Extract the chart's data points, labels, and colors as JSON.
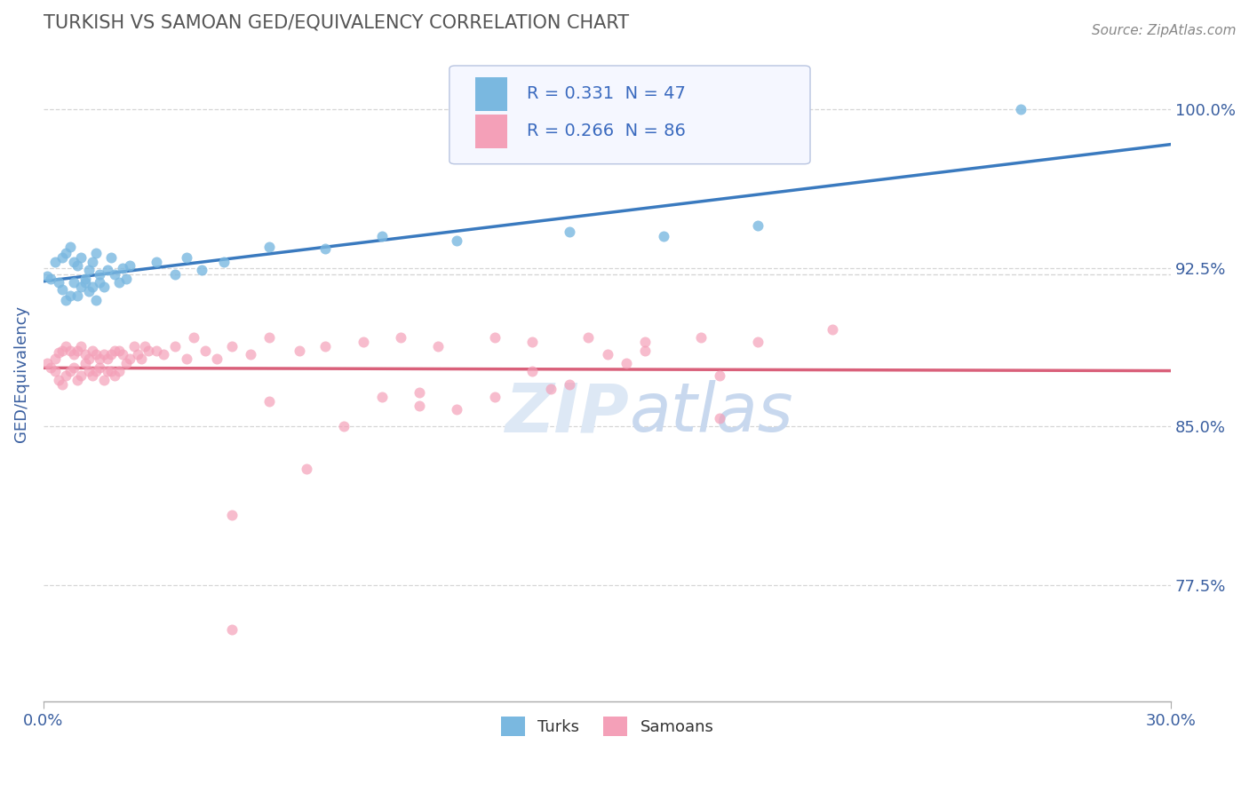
{
  "title": "TURKISH VS SAMOAN GED/EQUIVALENCY CORRELATION CHART",
  "source": "Source: ZipAtlas.com",
  "ylabel": "GED/Equivalency",
  "xlim": [
    0.0,
    0.3
  ],
  "ylim": [
    0.72,
    1.03
  ],
  "yticks": [
    0.775,
    0.85,
    0.925,
    1.0
  ],
  "ytick_labels": [
    "77.5%",
    "85.0%",
    "92.5%",
    "100.0%"
  ],
  "xticks": [
    0.0,
    0.3
  ],
  "xtick_labels": [
    "0.0%",
    "30.0%"
  ],
  "legend_r1_prefix": "R = ",
  "legend_r1_val": "0.331",
  "legend_r1_n": "  N = ",
  "legend_r1_nval": "47",
  "legend_r2_prefix": "R = ",
  "legend_r2_val": "0.266",
  "legend_r2_n": "  N = ",
  "legend_r2_nval": "86",
  "turks_color": "#7ab8e0",
  "samoans_color": "#f4a0b8",
  "turks_line_color": "#3a7abf",
  "samoans_line_color": "#d9607a",
  "grid_color": "#cccccc",
  "title_color": "#555555",
  "axis_label_color": "#3a5fa0",
  "blue_text_color": "#3a6abf",
  "watermark_color": "#dde8f5",
  "background_color": "#ffffff",
  "turks_scatter_x": [
    0.001,
    0.002,
    0.003,
    0.004,
    0.005,
    0.005,
    0.006,
    0.006,
    0.007,
    0.007,
    0.008,
    0.008,
    0.009,
    0.009,
    0.01,
    0.01,
    0.011,
    0.011,
    0.012,
    0.012,
    0.013,
    0.013,
    0.014,
    0.014,
    0.015,
    0.015,
    0.016,
    0.017,
    0.018,
    0.019,
    0.02,
    0.021,
    0.022,
    0.023,
    0.03,
    0.035,
    0.038,
    0.042,
    0.048,
    0.06,
    0.075,
    0.09,
    0.11,
    0.14,
    0.165,
    0.19,
    0.26
  ],
  "turks_scatter_y": [
    0.921,
    0.92,
    0.928,
    0.918,
    0.93,
    0.915,
    0.932,
    0.91,
    0.935,
    0.912,
    0.928,
    0.918,
    0.926,
    0.912,
    0.93,
    0.916,
    0.92,
    0.918,
    0.924,
    0.914,
    0.928,
    0.916,
    0.932,
    0.91,
    0.922,
    0.918,
    0.916,
    0.924,
    0.93,
    0.922,
    0.918,
    0.925,
    0.92,
    0.926,
    0.928,
    0.922,
    0.93,
    0.924,
    0.928,
    0.935,
    0.934,
    0.94,
    0.938,
    0.942,
    0.94,
    0.945,
    1.0
  ],
  "samoans_scatter_x": [
    0.001,
    0.002,
    0.003,
    0.003,
    0.004,
    0.004,
    0.005,
    0.005,
    0.006,
    0.006,
    0.007,
    0.007,
    0.008,
    0.008,
    0.009,
    0.009,
    0.01,
    0.01,
    0.011,
    0.011,
    0.012,
    0.012,
    0.013,
    0.013,
    0.014,
    0.014,
    0.015,
    0.015,
    0.016,
    0.016,
    0.017,
    0.017,
    0.018,
    0.018,
    0.019,
    0.019,
    0.02,
    0.02,
    0.021,
    0.022,
    0.023,
    0.024,
    0.025,
    0.026,
    0.027,
    0.028,
    0.03,
    0.032,
    0.035,
    0.038,
    0.04,
    0.043,
    0.046,
    0.05,
    0.055,
    0.06,
    0.068,
    0.075,
    0.085,
    0.095,
    0.105,
    0.12,
    0.13,
    0.145,
    0.16,
    0.175,
    0.19,
    0.21,
    0.06,
    0.13,
    0.155,
    0.18,
    0.135,
    0.05,
    0.16,
    0.09,
    0.1,
    0.05,
    0.18,
    0.14,
    0.11,
    0.07,
    0.08,
    0.1,
    0.12,
    0.15
  ],
  "samoans_scatter_y": [
    0.88,
    0.878,
    0.882,
    0.876,
    0.885,
    0.872,
    0.886,
    0.87,
    0.888,
    0.874,
    0.886,
    0.876,
    0.884,
    0.878,
    0.886,
    0.872,
    0.888,
    0.874,
    0.884,
    0.88,
    0.882,
    0.876,
    0.886,
    0.874,
    0.884,
    0.876,
    0.882,
    0.878,
    0.884,
    0.872,
    0.882,
    0.876,
    0.884,
    0.876,
    0.886,
    0.874,
    0.886,
    0.876,
    0.884,
    0.88,
    0.882,
    0.888,
    0.884,
    0.882,
    0.888,
    0.886,
    0.886,
    0.884,
    0.888,
    0.882,
    0.892,
    0.886,
    0.882,
    0.888,
    0.884,
    0.892,
    0.886,
    0.888,
    0.89,
    0.892,
    0.888,
    0.892,
    0.89,
    0.892,
    0.886,
    0.892,
    0.89,
    0.896,
    0.862,
    0.876,
    0.88,
    0.854,
    0.868,
    0.808,
    0.89,
    0.864,
    0.866,
    0.754,
    0.874,
    0.87,
    0.858,
    0.83,
    0.85,
    0.86,
    0.864,
    0.884
  ],
  "dashed_line_y": 0.922
}
